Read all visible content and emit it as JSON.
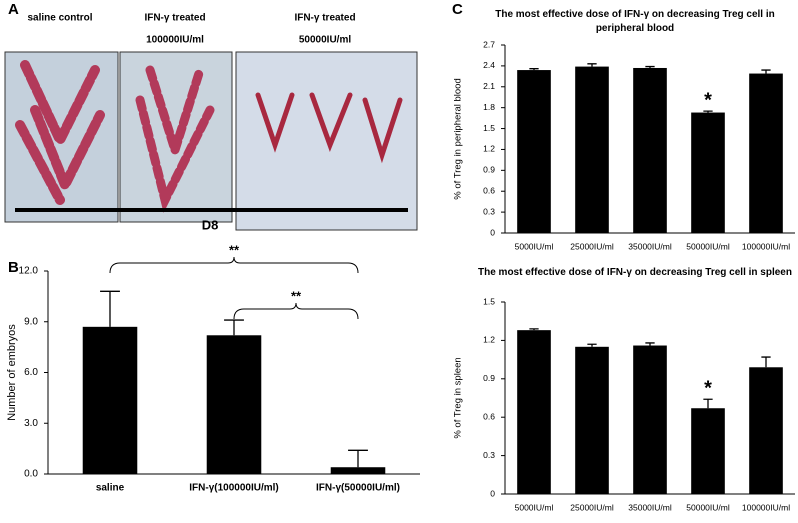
{
  "panels": {
    "A": {
      "label": "A",
      "photo_captions": [
        [
          "saline control"
        ],
        [
          "IFN-γ treated",
          "100000IU/ml"
        ],
        [
          "IFN-γ treated",
          "50000IU/ml"
        ]
      ],
      "timeline_label": "D8"
    },
    "B": {
      "label": "B"
    },
    "C": {
      "label": "C"
    }
  },
  "chart_data": [
    {
      "type": "bar",
      "y_label": "Number of embryos",
      "categories": [
        "saline",
        "IFN-γ(100000IU/ml)",
        "IFN-γ(50000IU/ml)"
      ],
      "values": [
        8.7,
        8.2,
        0.4
      ],
      "errors": [
        2.1,
        0.9,
        1.0
      ],
      "color": "#000000",
      "ylim": [
        0,
        12
      ],
      "yticks": [
        {
          "value": 0,
          "label": "0.0"
        },
        {
          "value": 3,
          "label": "3.0"
        },
        {
          "value": 6,
          "label": "6.0"
        },
        {
          "value": 9,
          "label": "9.0"
        },
        {
          "value": 12,
          "label": "12.0"
        }
      ],
      "brackets": [
        {
          "text": "**",
          "from": "saline",
          "to": "IFN-γ(50000IU/ml)"
        },
        {
          "text": "**",
          "from": "IFN-γ(100000IU/ml)",
          "to": "IFN-γ(50000IU/ml)"
        }
      ]
    },
    {
      "type": "bar",
      "title": "The most effective dose of IFN-γ on decreasing Treg cell in peripheral blood",
      "y_label": "% of Treg in peripheral blood",
      "categories": [
        "5000IU/ml",
        "25000IU/ml",
        "35000IU/ml",
        "50000IU/ml",
        "100000IU/ml"
      ],
      "values": [
        2.34,
        2.39,
        2.37,
        1.73,
        2.29
      ],
      "errors": [
        0.02,
        0.04,
        0.02,
        0.02,
        0.05
      ],
      "markers": [
        null,
        null,
        null,
        "*",
        null
      ],
      "color": "#000000",
      "ylim": [
        0,
        2.7
      ],
      "yticks": [
        0,
        0.3,
        0.6,
        0.9,
        1.2,
        1.5,
        1.8,
        2.1,
        2.4,
        2.7
      ]
    },
    {
      "type": "bar",
      "title": "The most effective dose of IFN-γ on decreasing Treg cell in spleen",
      "y_label": "% of Treg in spleen",
      "categories": [
        "5000IU/ml",
        "25000IU/ml",
        "35000IU/ml",
        "50000IU/ml",
        "100000IU/ml"
      ],
      "values": [
        1.28,
        1.15,
        1.16,
        0.67,
        0.99
      ],
      "errors": [
        0.01,
        0.02,
        0.02,
        0.07,
        0.08
      ],
      "markers": [
        null,
        null,
        null,
        "*",
        null
      ],
      "color": "#000000",
      "ylim": [
        0,
        1.5
      ],
      "yticks": [
        0,
        0.3,
        0.6,
        0.9,
        1.2,
        1.5
      ]
    }
  ]
}
